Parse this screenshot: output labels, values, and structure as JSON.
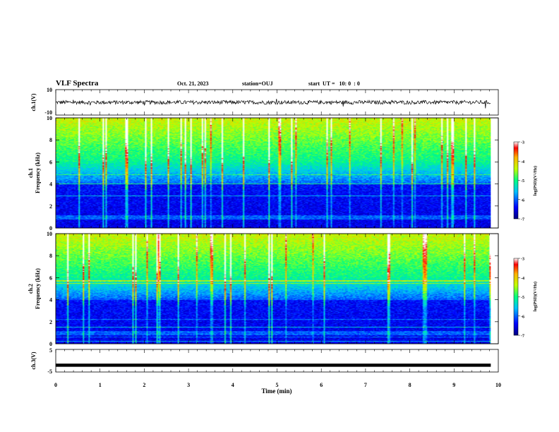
{
  "header": {
    "title": "VLF Spectra",
    "date": "Oct. 21, 2023",
    "station": "station=OUJ",
    "start_ut": "start  UT =   10: 0  : 0"
  },
  "chart_data": [
    {
      "type": "line",
      "panel": "ch1-waveform",
      "ylabel": "ch.1(V)",
      "ylim": [
        -10,
        10
      ],
      "yticks": [
        "10",
        "-10"
      ],
      "xlim": [
        0,
        10
      ],
      "series": [
        {
          "baseline": 0,
          "amplitude_typical": 1.5,
          "x_end": 9.83
        }
      ]
    },
    {
      "type": "heatmap",
      "panel": "ch1-spectrogram",
      "ylabel_line1": "ch.1",
      "ylabel_line2": "Frequency (kHz)",
      "ylim": [
        0,
        10
      ],
      "yticks": [
        "0",
        "2",
        "4",
        "6",
        "8",
        "10"
      ],
      "xlim": [
        0,
        10
      ],
      "x_end": 9.83,
      "colorbar": {
        "label": "log(PSD)(V²/Hz)",
        "ticks": [
          "-3",
          "-4",
          "-5",
          "-6",
          "-7"
        ],
        "range": [
          -7,
          -3
        ]
      }
    },
    {
      "type": "heatmap",
      "panel": "ch2-spectrogram",
      "ylabel_line1": "ch.2",
      "ylabel_line2": "Frequency (kHz)",
      "ylim": [
        0,
        10
      ],
      "yticks": [
        "0",
        "2",
        "4",
        "6",
        "8",
        "10"
      ],
      "xlim": [
        0,
        10
      ],
      "x_end": 9.83,
      "colorbar": {
        "label": "log(PSD)(V²/Hz)",
        "ticks": [
          "-3",
          "-4",
          "-5",
          "-6",
          "-7"
        ],
        "range": [
          -7,
          -3
        ]
      }
    },
    {
      "type": "line",
      "panel": "ch3-waveform",
      "ylabel": "ch.3(V)",
      "ylim": [
        -5,
        5
      ],
      "yticks": [
        "5",
        "-5"
      ],
      "xlim": [
        0,
        10
      ],
      "series": [
        {
          "baseline": -2,
          "x_end": 9.83
        }
      ]
    }
  ],
  "xaxis": {
    "label": "Time (min)",
    "ticks": [
      "0",
      "1",
      "2",
      "3",
      "4",
      "5",
      "6",
      "7",
      "8",
      "9",
      "10"
    ]
  }
}
